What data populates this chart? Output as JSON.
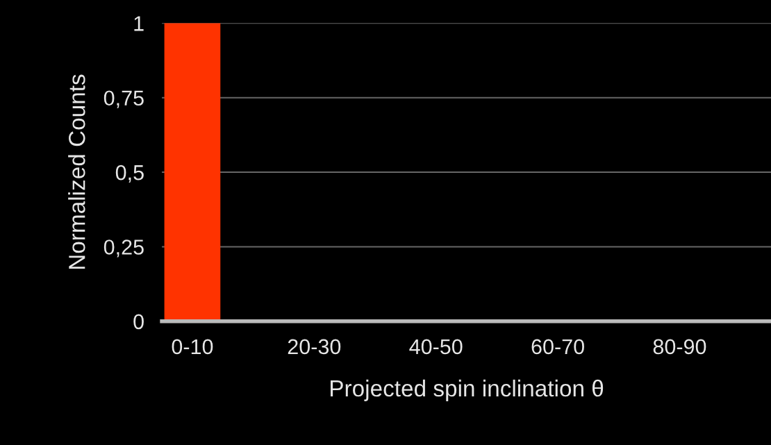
{
  "chart_data": {
    "type": "bar",
    "xlabel": "Projected spin inclination θ",
    "ylabel": "Normalized Counts",
    "categories": [
      "0-10",
      null,
      "20-30",
      null,
      "40-50",
      null,
      "60-70",
      null,
      "80-90",
      null
    ],
    "values": [
      1,
      0,
      0,
      0,
      0,
      0,
      0,
      0,
      0,
      0
    ],
    "color": "#ff3300",
    "ylim": [
      0,
      1
    ],
    "yticks": [
      0,
      {
        "value": 0.25,
        "label": "0,25"
      },
      {
        "value": 0.5,
        "label": "0,5"
      },
      {
        "value": 0.75,
        "label": "0,75"
      },
      1
    ],
    "grid": "y"
  }
}
